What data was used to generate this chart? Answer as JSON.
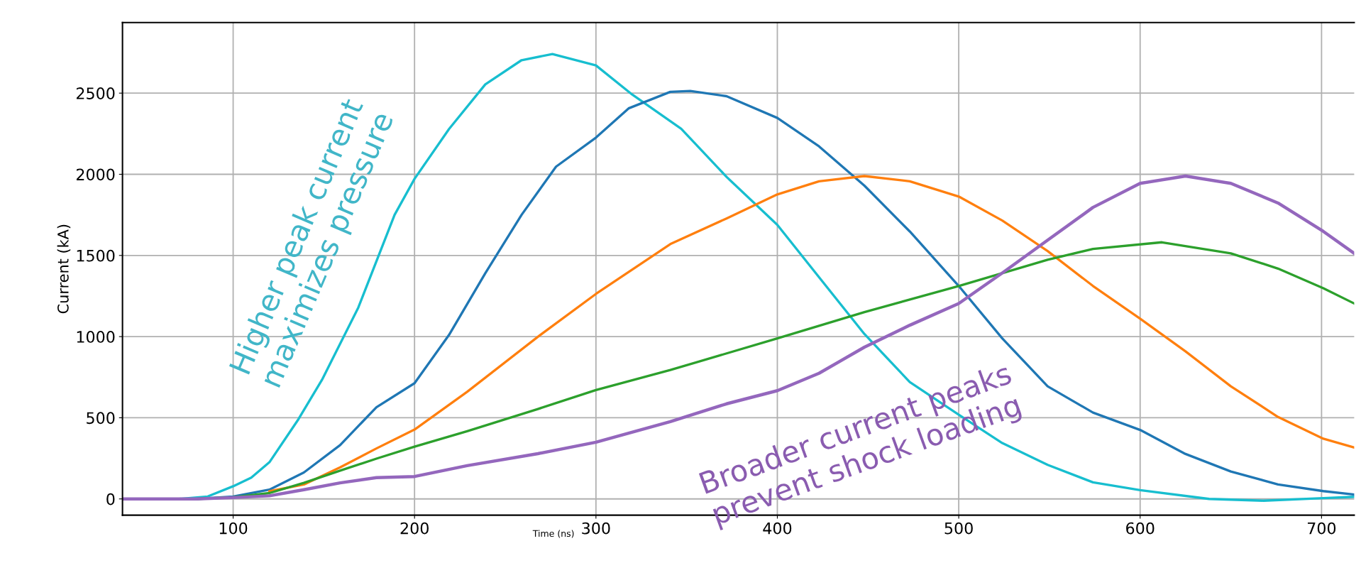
{
  "chart_data": {
    "type": "line",
    "xlabel": "Time (ns)",
    "ylabel": "Current (kA)",
    "xlim": [
      39,
      718
    ],
    "ylim": [
      -100,
      2935
    ],
    "xticks": [
      100,
      200,
      300,
      400,
      500,
      600,
      700
    ],
    "yticks": [
      0,
      500,
      1000,
      1500,
      2000,
      2500
    ],
    "grid": true,
    "marker": "none",
    "line_style": "solid",
    "annotations": [
      "Higher peak current\nmaximizes pressure",
      "Broader current peaks\nprevent shock loading"
    ],
    "series": [
      {
        "color": "#17becf",
        "x": [
          39,
          70,
          86,
          100,
          110,
          120,
          136,
          149,
          169,
          189,
          200,
          219,
          239,
          259,
          276,
          300,
          320,
          347,
          372,
          400,
          423,
          448,
          473,
          500,
          524,
          549,
          574,
          600,
          638,
          668,
          701,
          718
        ],
        "values": [
          0,
          0,
          15,
          78,
          131,
          226,
          491,
          734,
          1179,
          1750,
          1972,
          2279,
          2554,
          2703,
          2741,
          2671,
          2491,
          2280,
          1984,
          1688,
          1366,
          1016,
          720,
          519,
          344,
          210,
          102,
          54,
          0,
          -11,
          5,
          13
        ]
      },
      {
        "color": "#1f77b4",
        "x": [
          39,
          80,
          100,
          120,
          139,
          159,
          179,
          200,
          219,
          239,
          259,
          278,
          300,
          318,
          341,
          352,
          372,
          400,
          423,
          448,
          473,
          500,
          524,
          549,
          574,
          600,
          625,
          650,
          676,
          701,
          718
        ],
        "values": [
          0,
          0,
          15,
          57,
          163,
          332,
          565,
          713,
          1010,
          1390,
          1750,
          2047,
          2226,
          2406,
          2508,
          2513,
          2481,
          2347,
          2172,
          1930,
          1648,
          1312,
          989,
          694,
          532,
          425,
          277,
          169,
          89,
          48,
          27
        ]
      },
      {
        "color": "#ff7f0e",
        "x": [
          39,
          80,
          100,
          120,
          139,
          159,
          179,
          200,
          229,
          268,
          300,
          341,
          372,
          400,
          423,
          448,
          473,
          500,
          524,
          549,
          574,
          600,
          625,
          650,
          676,
          701,
          718
        ],
        "values": [
          0,
          0,
          null,
          47,
          89,
          195,
          311,
          427,
          660,
          999,
          1263,
          1570,
          1728,
          1876,
          1957,
          1989,
          1957,
          1863,
          1715,
          1527,
          1312,
          1110,
          909,
          694,
          505,
          371,
          317
        ]
      },
      {
        "color": "#2ca02c",
        "x": [
          39,
          80,
          100,
          120,
          139,
          159,
          179,
          200,
          229,
          268,
          300,
          341,
          400,
          448,
          500,
          549,
          574,
          612,
          650,
          676,
          701,
          718
        ],
        "values": [
          0,
          0,
          10,
          36,
          99,
          174,
          248,
          322,
          417,
          554,
          671,
          794,
          989,
          1151,
          1312,
          1473,
          1540,
          1581,
          1513,
          1419,
          1298,
          1204
        ]
      },
      {
        "color": "#9467bd",
        "x": [
          39,
          80,
          100,
          120,
          139,
          159,
          179,
          200,
          229,
          268,
          300,
          341,
          372,
          400,
          423,
          448,
          473,
          500,
          524,
          549,
          574,
          600,
          625,
          650,
          676,
          701,
          718
        ],
        "values": [
          0,
          0,
          8,
          19,
          57,
          99,
          131,
          138,
          205,
          279,
          349,
          476,
          586,
          667,
          774,
          935,
          1070,
          1204,
          1392,
          1594,
          1796,
          1944,
          1989,
          1944,
          1823,
          1648,
          1513
        ]
      }
    ]
  }
}
